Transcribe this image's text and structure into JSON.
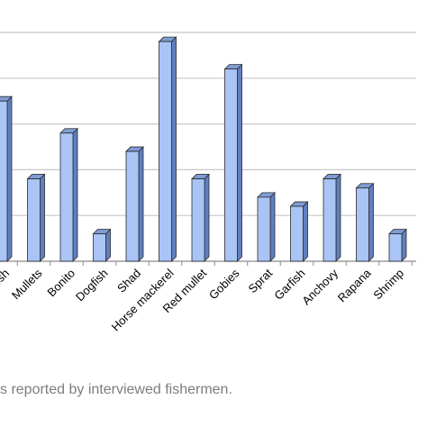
{
  "chart_data": {
    "type": "bar",
    "categories": [
      "...sh",
      "Mullets",
      "Bonito",
      "Dogfish",
      "Shad",
      "Horse mackerel",
      "Red mullet",
      "Gobies",
      "Sprat",
      "Garfish",
      "Anchovy",
      "Rapana",
      "Shrimp"
    ],
    "values": [
      35,
      18,
      28,
      6,
      24,
      48,
      18,
      42,
      14,
      12,
      18,
      16,
      6
    ],
    "ylim": [
      0,
      50
    ],
    "grid": true,
    "bar_color": "#a9c4f5",
    "bar_edge_color": "#2b2b2b",
    "grid_color": "#c8c8c8",
    "caption": "s reported by interviewed fishermen."
  }
}
